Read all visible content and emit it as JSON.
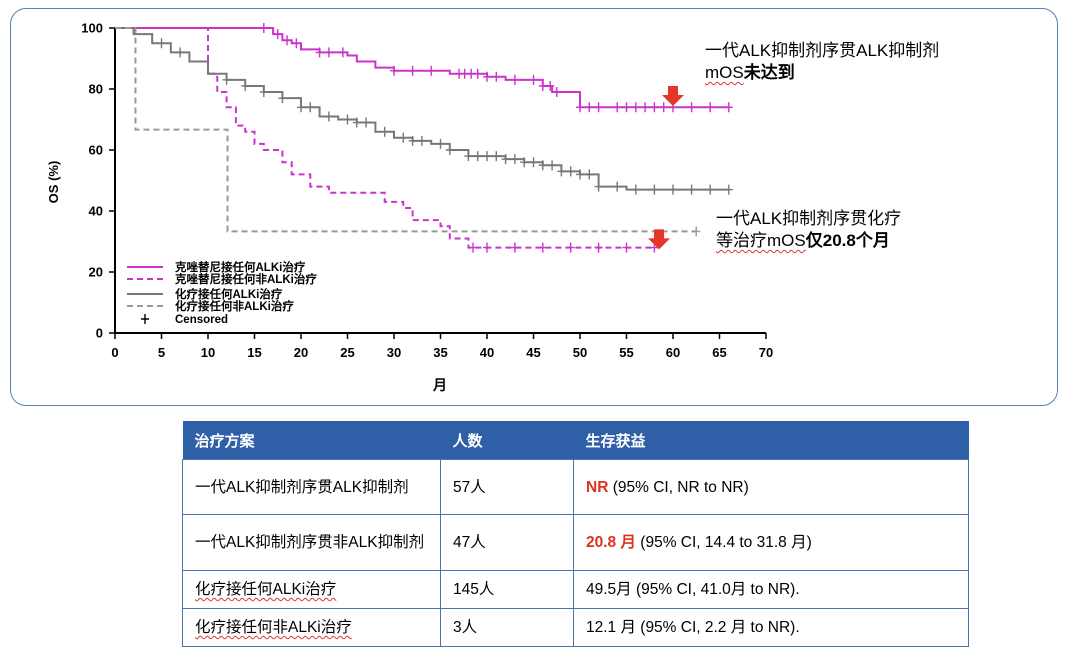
{
  "chart_data": {
    "type": "line",
    "subtype": "kaplan-meier",
    "ylabel": "OS (%)",
    "xlabel": "月",
    "xlim": [
      0,
      70
    ],
    "ylim": [
      0,
      100
    ],
    "x_ticks": [
      "0",
      "5",
      "10",
      "15",
      "20",
      "25",
      "30",
      "35",
      "40",
      "45",
      "50",
      "55",
      "60",
      "65",
      "70"
    ],
    "y_ticks": [
      "0",
      "20",
      "40",
      "60",
      "80",
      "100"
    ],
    "legend_position": "bottom-left",
    "series": [
      {
        "name": "克唑替尼接任何ALKi治疗",
        "style": "solid",
        "color": "#cc33cc",
        "x": [
          0,
          16,
          17,
          18,
          19,
          20,
          22,
          25,
          26,
          28,
          30,
          33,
          36,
          40,
          42,
          46,
          47,
          48,
          50,
          55,
          66
        ],
        "y": [
          100,
          100,
          98,
          96,
          95,
          93,
          92,
          91,
          89,
          87,
          86,
          86,
          85,
          84,
          83,
          81,
          79,
          79,
          74,
          74,
          74
        ],
        "censor_x": [
          16,
          17.5,
          18.5,
          19.5,
          22,
          23,
          24.5,
          30,
          32,
          34,
          37,
          37.6,
          38.3,
          39,
          40,
          41,
          43,
          45,
          46,
          46.8,
          47.5,
          50,
          51,
          52,
          54,
          55,
          56,
          57,
          58,
          59,
          60,
          62,
          64,
          66
        ]
      },
      {
        "name": "克唑替尼接任何非ALKi治疗",
        "style": "dashed",
        "color": "#cc33cc",
        "x": [
          0,
          10,
          11,
          12,
          13,
          14,
          15,
          16,
          18,
          19,
          21,
          23,
          26,
          29,
          31,
          32,
          35,
          36,
          38,
          42,
          58
        ],
        "y": [
          100,
          85,
          79,
          74,
          68,
          66,
          62,
          60,
          56,
          52,
          48,
          46,
          46,
          43,
          41,
          37,
          35,
          31,
          28,
          28,
          28
        ],
        "censor_x": [
          38.5,
          40,
          43,
          46,
          49,
          52,
          55,
          58
        ]
      },
      {
        "name": "化疗接任何ALKi治疗",
        "style": "solid",
        "color": "#777777",
        "x": [
          0,
          2,
          4,
          6,
          8,
          10,
          12,
          14,
          16,
          18,
          20,
          22,
          24,
          26,
          28,
          30,
          32,
          34,
          36,
          38,
          40,
          42,
          44,
          46,
          48,
          50,
          52,
          55,
          60,
          66
        ],
        "y": [
          100,
          98,
          95,
          92,
          89,
          85,
          83,
          81,
          79,
          77,
          74,
          71,
          70,
          69,
          66,
          64,
          63,
          62,
          60,
          58,
          58,
          57,
          56,
          55,
          53,
          52,
          48,
          47,
          47,
          47
        ],
        "censor_x": [
          5,
          7,
          12,
          14,
          16,
          18,
          20,
          21,
          23,
          25,
          26,
          27,
          29,
          31,
          32,
          33,
          35,
          36,
          38,
          39,
          40,
          41,
          42,
          43,
          44,
          45,
          46,
          47,
          48,
          49,
          50,
          51,
          52,
          54,
          56,
          58,
          60,
          62,
          64,
          66
        ]
      },
      {
        "name": "化疗接任何非ALKi治疗",
        "style": "dashed",
        "color": "#999999",
        "x": [
          0,
          2.2,
          12.1,
          62.5
        ],
        "y": [
          100,
          66.7,
          33.3,
          33.3
        ],
        "censor_x": [
          62.5
        ]
      }
    ],
    "legend_extra": "Censored",
    "annotations": [
      {
        "text_line1": "一代ALK抑制剂序贯ALK抑制剂",
        "text_line2_plain": "mOS",
        "text_line2_bold": "未达到",
        "arrow_x": 60,
        "arrow_y": 80
      },
      {
        "text_line1": "一代ALK抑制剂序贯化疗",
        "text_line2_plain": "等治疗mOS",
        "text_line2_bold": "仅20.8个月",
        "arrow_x": 58.5,
        "arrow_y": 33
      }
    ]
  },
  "table": {
    "headers": [
      "治疗方案",
      "人数",
      "生存获益"
    ],
    "rows": [
      {
        "scheme": "一代ALK抑制剂序贯ALK抑制剂",
        "n": "57人",
        "highlight": "NR",
        "detail": " (95% CI, NR to NR)"
      },
      {
        "scheme": "一代ALK抑制剂序贯非ALK抑制剂",
        "n": "47人",
        "highlight": "20.8 月",
        "detail": " (95% CI, 14.4 to 31.8 月)"
      },
      {
        "scheme": "化疗接任何ALKi治疗",
        "n": "145人",
        "highlight": "",
        "detail": "49.5月 (95% CI, 41.0月 to NR)."
      },
      {
        "scheme": "化疗接任何非ALKi治疗",
        "n": "3人",
        "highlight": "",
        "detail": "12.1 月 (95% CI, 2.2 月 to NR)."
      }
    ]
  },
  "colors": {
    "accent_border": "#5b7fb5",
    "header_bg": "#2f5fa6",
    "highlight_red": "#e0301e",
    "arrow_red": "#e53528"
  }
}
